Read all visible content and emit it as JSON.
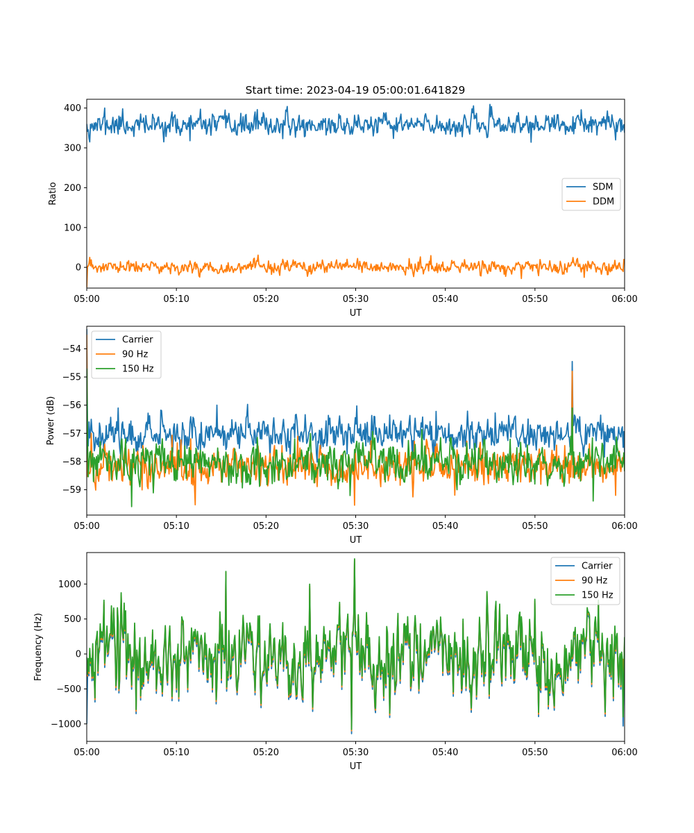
{
  "figure": {
    "title": "Start time: 2023-04-19 05:00:01.641829"
  },
  "colors": {
    "blue": "#1f77b4",
    "orange": "#ff7f0e",
    "green": "#2ca02c"
  },
  "chart_data": [
    {
      "type": "line",
      "title": "Start time: 2023-04-19 05:00:01.641829",
      "xlabel": "UT",
      "ylabel": "Ratio",
      "xlim": [
        "05:00",
        "06:00"
      ],
      "ylim": [
        -52,
        422
      ],
      "xticks": [
        "05:00",
        "05:10",
        "05:20",
        "05:30",
        "05:40",
        "05:50",
        "06:00"
      ],
      "yticks": [
        0,
        100,
        200,
        300,
        400
      ],
      "legend_loc": "center-right",
      "series": [
        {
          "name": "SDM",
          "color": "#1f77b4",
          "mean": 357,
          "noise": 13,
          "seed": 11,
          "points": [
            [
              "05:00",
              360
            ],
            [
              "05:00:20",
              315
            ],
            [
              "05:01:30",
              350
            ],
            [
              "05:02:00",
              400
            ],
            [
              "05:04:00",
              398
            ],
            [
              "05:11:30",
              318
            ],
            [
              "05:19:00",
              396
            ],
            [
              "05:43:00",
              398
            ],
            [
              "05:59:00",
              320
            ],
            [
              "05:59:40",
              370
            ]
          ]
        },
        {
          "name": "DDM",
          "color": "#ff7f0e",
          "mean": 0,
          "noise": 8,
          "seed": 23,
          "points": [
            [
              "05:00",
              -50
            ],
            [
              "05:00:20",
              25
            ],
            [
              "05:36:00",
              22
            ],
            [
              "05:48:30",
              -28
            ],
            [
              "05:55:30",
              -25
            ]
          ]
        }
      ]
    },
    {
      "type": "line",
      "xlabel": "UT",
      "ylabel": "Power (dB)",
      "xlim": [
        "05:00",
        "06:00"
      ],
      "ylim": [
        -59.9,
        -53.2
      ],
      "xticks": [
        "05:00",
        "05:10",
        "05:20",
        "05:30",
        "05:40",
        "05:50",
        "06:00"
      ],
      "yticks": [
        -59,
        -58,
        -57,
        -56,
        -55,
        -54
      ],
      "legend_loc": "upper-left",
      "series": [
        {
          "name": "Carrier",
          "color": "#1f77b4",
          "mean": -57.0,
          "noise": 0.3,
          "seed": 37,
          "points": [
            [
              "05:00",
              -53.3
            ],
            [
              "05:00:30",
              -56.5
            ],
            [
              "05:14:30",
              -56.0
            ],
            [
              "05:54:10",
              -54.45
            ],
            [
              "06:00",
              -57.7
            ]
          ]
        },
        {
          "name": "90 Hz",
          "color": "#ff7f0e",
          "mean": -58.15,
          "noise": 0.35,
          "seed": 41,
          "points": [
            [
              "05:00",
              -53.5
            ],
            [
              "05:00:30",
              -57.0
            ],
            [
              "05:29:50",
              -59.55
            ],
            [
              "05:54:10",
              -54.8
            ],
            [
              "05:59:00",
              -59.2
            ]
          ]
        },
        {
          "name": "150 Hz",
          "color": "#2ca02c",
          "mean": -58.05,
          "noise": 0.35,
          "seed": 53,
          "points": [
            [
              "05:00",
              -54.7
            ],
            [
              "05:00:30",
              -58.2
            ],
            [
              "05:05:00",
              -59.6
            ],
            [
              "05:54:10",
              -56.1
            ],
            [
              "05:56:30",
              -59.4
            ]
          ]
        }
      ]
    },
    {
      "type": "line",
      "xlabel": "UT",
      "ylabel": "Frequency (Hz)",
      "xlim": [
        "05:00",
        "06:00"
      ],
      "ylim": [
        -1250,
        1450
      ],
      "xticks": [
        "05:00",
        "05:10",
        "05:20",
        "05:30",
        "05:40",
        "05:50",
        "06:00"
      ],
      "yticks": [
        -1000,
        -500,
        0,
        500,
        1000
      ],
      "legend_loc": "upper-right",
      "series": [
        {
          "name": "Carrier",
          "color": "#1f77b4",
          "offset": -60,
          "noise": 420,
          "seed": 67,
          "points": [
            [
              "05:15:30",
              1150
            ],
            [
              "05:29:30",
              -1140
            ],
            [
              "05:29:50",
              1340
            ],
            [
              "05:00",
              -1000
            ],
            [
              "05:59:50",
              -1030
            ]
          ]
        },
        {
          "name": "90 Hz",
          "color": "#ff7f0e",
          "offset": -25,
          "noise": 420,
          "seed": 67,
          "points": [
            [
              "05:15:30",
              1170
            ],
            [
              "05:29:30",
              -1100
            ],
            [
              "05:29:50",
              1350
            ]
          ]
        },
        {
          "name": "150 Hz",
          "color": "#2ca02c",
          "offset": 0,
          "noise": 420,
          "seed": 67,
          "points": [
            [
              "05:15:30",
              1180
            ],
            [
              "05:29:30",
              -1080
            ],
            [
              "05:29:50",
              1360
            ],
            [
              "05:59:50",
              -900
            ]
          ]
        }
      ]
    }
  ]
}
